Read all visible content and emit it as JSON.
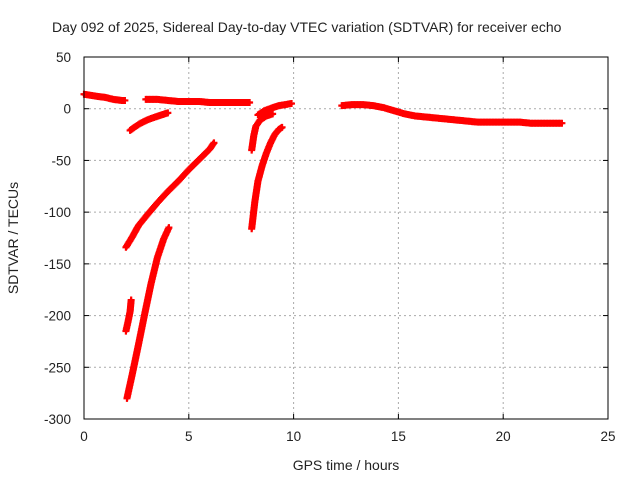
{
  "chart_data": {
    "type": "scatter",
    "title": "Day 092 of 2025, Sidereal Day-to-day VTEC variation (SDTVAR) for receiver echo",
    "xlabel": "GPS time / hours",
    "ylabel": "SDTVAR / TECUs",
    "xlim": [
      0,
      25
    ],
    "ylim": [
      -300,
      50
    ],
    "xticks": [
      0,
      5,
      10,
      15,
      20,
      25
    ],
    "yticks": [
      -300,
      -250,
      -200,
      -150,
      -100,
      -50,
      0,
      50
    ],
    "grid": true,
    "marker": "plus",
    "color": "#ff0000",
    "series": [
      {
        "segments": [
          [
            [
              0.0,
              14
            ],
            [
              0.3,
              13
            ],
            [
              0.6,
              12
            ],
            [
              1.0,
              11
            ],
            [
              1.4,
              9
            ],
            [
              1.8,
              8
            ],
            [
              1.95,
              8
            ]
          ],
          [
            [
              2.2,
              -21
            ],
            [
              2.4,
              -18
            ],
            [
              2.7,
              -14
            ],
            [
              3.0,
              -11
            ],
            [
              3.4,
              -8
            ],
            [
              3.7,
              -6
            ],
            [
              4.0,
              -4
            ]
          ],
          [
            [
              2.95,
              9
            ],
            [
              3.5,
              9
            ],
            [
              4.0,
              8
            ],
            [
              4.5,
              7
            ],
            [
              5.0,
              7
            ],
            [
              5.5,
              7
            ],
            [
              6.0,
              6
            ],
            [
              6.5,
              6
            ],
            [
              7.0,
              6
            ],
            [
              7.5,
              6
            ],
            [
              7.9,
              6
            ]
          ],
          [
            [
              2.0,
              -134
            ],
            [
              2.3,
              -124
            ],
            [
              2.6,
              -113
            ],
            [
              3.0,
              -103
            ],
            [
              3.5,
              -91
            ],
            [
              4.0,
              -80
            ],
            [
              4.5,
              -70
            ],
            [
              5.0,
              -59
            ],
            [
              5.5,
              -49
            ],
            [
              6.0,
              -39
            ],
            [
              6.2,
              -33
            ]
          ],
          [
            [
              2.05,
              -280
            ],
            [
              2.3,
              -257
            ],
            [
              2.6,
              -228
            ],
            [
              2.9,
              -198
            ],
            [
              3.2,
              -169
            ],
            [
              3.5,
              -144
            ],
            [
              3.8,
              -126
            ],
            [
              4.05,
              -115
            ]
          ],
          [
            [
              2.0,
              -215
            ],
            [
              2.1,
              -206
            ],
            [
              2.2,
              -196
            ],
            [
              2.25,
              -185
            ]
          ],
          [
            [
              8.0,
              -40
            ],
            [
              8.1,
              -26
            ],
            [
              8.2,
              -17
            ],
            [
              8.4,
              -11
            ],
            [
              8.7,
              -7
            ],
            [
              9.0,
              -5
            ]
          ],
          [
            [
              8.0,
              -116
            ],
            [
              8.15,
              -90
            ],
            [
              8.3,
              -70
            ],
            [
              8.5,
              -55
            ],
            [
              8.7,
              -43
            ],
            [
              8.9,
              -33
            ],
            [
              9.1,
              -25
            ],
            [
              9.3,
              -20
            ],
            [
              9.45,
              -18
            ]
          ],
          [
            [
              8.3,
              -6
            ],
            [
              8.6,
              -2
            ],
            [
              9.0,
              1
            ],
            [
              9.3,
              3
            ],
            [
              9.6,
              4
            ],
            [
              9.9,
              5
            ]
          ],
          [
            [
              12.3,
              3
            ],
            [
              12.8,
              4
            ],
            [
              13.3,
              4
            ],
            [
              13.8,
              3
            ],
            [
              14.3,
              1
            ],
            [
              14.8,
              -2
            ],
            [
              15.3,
              -5
            ],
            [
              15.8,
              -7
            ],
            [
              16.3,
              -8
            ],
            [
              16.8,
              -9
            ],
            [
              17.3,
              -10
            ],
            [
              17.8,
              -11
            ],
            [
              18.3,
              -12
            ],
            [
              18.8,
              -13
            ],
            [
              19.3,
              -13
            ],
            [
              19.8,
              -13
            ],
            [
              20.3,
              -13
            ],
            [
              20.8,
              -13
            ],
            [
              21.3,
              -14
            ],
            [
              21.8,
              -14
            ],
            [
              22.3,
              -14
            ],
            [
              22.8,
              -14
            ]
          ]
        ]
      }
    ]
  }
}
